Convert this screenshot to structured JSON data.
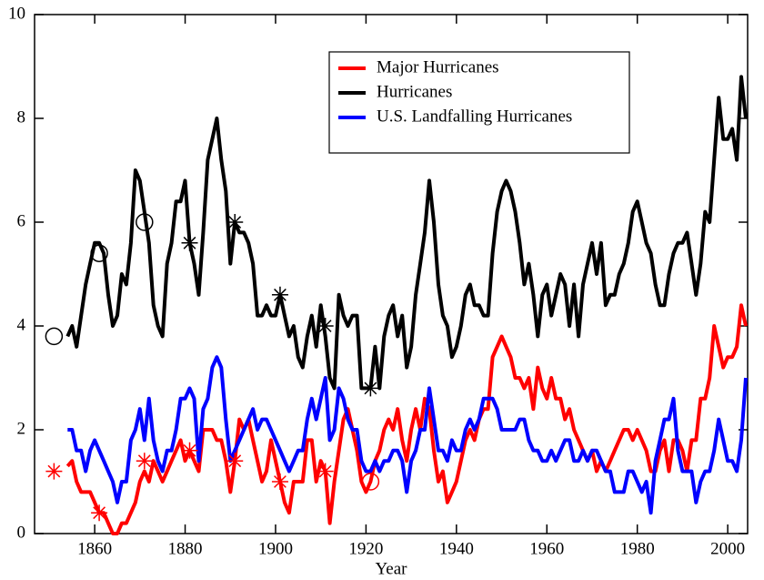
{
  "chart_data": {
    "type": "line",
    "xlabel": "Year",
    "xlim": [
      1846.7,
      2004.4
    ],
    "xticks": [
      1860,
      1880,
      1900,
      1920,
      1940,
      1960,
      1980,
      2000
    ],
    "ylim": [
      0,
      10
    ],
    "yticks": [
      0,
      2,
      4,
      6,
      8,
      10
    ],
    "grid": false,
    "legend": "upper-center",
    "x": [
      1854,
      1855,
      1856,
      1857,
      1858,
      1859,
      1860,
      1861,
      1862,
      1863,
      1864,
      1865,
      1866,
      1867,
      1868,
      1869,
      1870,
      1871,
      1872,
      1873,
      1874,
      1875,
      1876,
      1877,
      1878,
      1879,
      1880,
      1881,
      1882,
      1883,
      1884,
      1885,
      1886,
      1887,
      1888,
      1889,
      1890,
      1891,
      1892,
      1893,
      1894,
      1895,
      1896,
      1897,
      1898,
      1899,
      1900,
      1901,
      1902,
      1903,
      1904,
      1905,
      1906,
      1907,
      1908,
      1909,
      1910,
      1911,
      1912,
      1913,
      1914,
      1915,
      1916,
      1917,
      1918,
      1919,
      1920,
      1921,
      1922,
      1923,
      1924,
      1925,
      1926,
      1927,
      1928,
      1929,
      1930,
      1931,
      1932,
      1933,
      1934,
      1935,
      1936,
      1937,
      1938,
      1939,
      1940,
      1941,
      1942,
      1943,
      1944,
      1945,
      1946,
      1947,
      1948,
      1949,
      1950,
      1951,
      1952,
      1953,
      1954,
      1955,
      1956,
      1957,
      1958,
      1959,
      1960,
      1961,
      1962,
      1963,
      1964,
      1965,
      1966,
      1967,
      1968,
      1969,
      1970,
      1971,
      1972,
      1973,
      1974,
      1975,
      1976,
      1977,
      1978,
      1979,
      1980,
      1981,
      1982,
      1983,
      1984,
      1985,
      1986,
      1987,
      1988,
      1989,
      1990,
      1991,
      1992,
      1993,
      1994,
      1995,
      1996,
      1997,
      1998,
      1999,
      2000,
      2001,
      2002,
      2003,
      2004
    ],
    "series": [
      {
        "name": "Major Hurricanes",
        "color": "#ff0000",
        "values": [
          1.3,
          1.4,
          1.0,
          0.8,
          0.8,
          0.8,
          0.6,
          0.4,
          0.4,
          0.2,
          0.0,
          0.0,
          0.2,
          0.2,
          0.4,
          0.6,
          1.0,
          1.2,
          1.0,
          1.4,
          1.2,
          1.0,
          1.2,
          1.4,
          1.6,
          1.8,
          1.4,
          1.6,
          1.4,
          1.2,
          2.0,
          2.0,
          2.0,
          1.8,
          1.8,
          1.4,
          0.8,
          1.4,
          2.2,
          2.0,
          2.2,
          1.8,
          1.4,
          1.0,
          1.2,
          1.8,
          1.4,
          1.0,
          0.6,
          0.4,
          1.0,
          1.0,
          1.0,
          1.8,
          1.8,
          1.0,
          1.4,
          1.2,
          0.2,
          1.0,
          1.6,
          2.2,
          2.4,
          2.0,
          1.6,
          1.0,
          0.8,
          1.0,
          1.4,
          1.6,
          2.0,
          2.2,
          2.0,
          2.4,
          1.8,
          1.4,
          2.0,
          2.4,
          2.0,
          2.6,
          2.4,
          1.6,
          1.0,
          1.2,
          0.6,
          0.8,
          1.0,
          1.4,
          1.8,
          2.0,
          1.8,
          2.2,
          2.4,
          2.4,
          3.4,
          3.6,
          3.8,
          3.6,
          3.4,
          3.0,
          3.0,
          2.8,
          3.0,
          2.4,
          3.2,
          2.8,
          2.6,
          3.0,
          2.6,
          2.6,
          2.2,
          2.4,
          2.0,
          1.8,
          1.6,
          1.4,
          1.6,
          1.2,
          1.4,
          1.2,
          1.4,
          1.6,
          1.8,
          2.0,
          2.0,
          1.8,
          2.0,
          1.8,
          1.6,
          1.2,
          1.2,
          1.6,
          1.8,
          1.2,
          1.8,
          1.8,
          1.6,
          1.2,
          1.8,
          1.8,
          2.6,
          2.6,
          3.0,
          4.0,
          3.6,
          3.2,
          3.4,
          3.4,
          3.6,
          4.4,
          4.0
        ]
      },
      {
        "name": "Hurricanes",
        "color": "#000000",
        "values": [
          3.8,
          4.0,
          3.6,
          4.2,
          4.8,
          5.2,
          5.6,
          5.6,
          5.4,
          4.6,
          4.0,
          4.2,
          5.0,
          4.8,
          5.6,
          7.0,
          6.8,
          6.2,
          5.6,
          4.4,
          4.0,
          3.8,
          5.2,
          5.6,
          6.4,
          6.4,
          6.8,
          5.6,
          5.2,
          4.6,
          5.8,
          7.2,
          7.6,
          8.0,
          7.2,
          6.6,
          5.2,
          6.0,
          5.8,
          5.8,
          5.6,
          5.2,
          4.2,
          4.2,
          4.4,
          4.2,
          4.2,
          4.6,
          4.2,
          3.8,
          4.0,
          3.4,
          3.2,
          3.8,
          4.2,
          3.6,
          4.4,
          3.8,
          3.0,
          2.8,
          4.6,
          4.2,
          4.0,
          4.2,
          4.2,
          2.8,
          2.8,
          2.8,
          3.6,
          2.8,
          3.8,
          4.2,
          4.4,
          3.8,
          4.2,
          3.2,
          3.6,
          4.6,
          5.2,
          5.8,
          6.8,
          6.0,
          4.8,
          4.2,
          4.0,
          3.4,
          3.6,
          4.0,
          4.6,
          4.8,
          4.4,
          4.4,
          4.2,
          4.2,
          5.4,
          6.2,
          6.6,
          6.8,
          6.6,
          6.2,
          5.6,
          4.8,
          5.2,
          4.6,
          3.8,
          4.6,
          4.8,
          4.2,
          4.6,
          5.0,
          4.8,
          4.0,
          4.8,
          3.8,
          4.8,
          5.2,
          5.6,
          5.0,
          5.6,
          4.4,
          4.6,
          4.6,
          5.0,
          5.2,
          5.6,
          6.2,
          6.4,
          6.0,
          5.6,
          5.4,
          4.8,
          4.4,
          4.4,
          5.0,
          5.4,
          5.6,
          5.6,
          5.8,
          5.2,
          4.6,
          5.2,
          6.2,
          6.0,
          7.2,
          8.4,
          7.6,
          7.6,
          7.8,
          7.2,
          8.8,
          8.0
        ]
      },
      {
        "name": "U.S. Landfalling Hurricanes",
        "color": "#0000ff",
        "values": [
          2.0,
          2.0,
          1.6,
          1.6,
          1.2,
          1.6,
          1.8,
          1.6,
          1.4,
          1.2,
          1.0,
          0.6,
          1.0,
          1.0,
          1.8,
          2.0,
          2.4,
          1.8,
          2.6,
          1.8,
          1.4,
          1.2,
          1.6,
          1.6,
          2.0,
          2.6,
          2.6,
          2.8,
          2.6,
          1.4,
          2.4,
          2.6,
          3.2,
          3.4,
          3.2,
          2.2,
          1.4,
          1.6,
          1.8,
          2.0,
          2.2,
          2.4,
          2.0,
          2.2,
          2.2,
          2.0,
          1.8,
          1.6,
          1.4,
          1.2,
          1.4,
          1.6,
          1.6,
          2.2,
          2.6,
          2.2,
          2.6,
          3.0,
          1.8,
          2.0,
          2.8,
          2.6,
          2.2,
          2.0,
          2.0,
          1.4,
          1.2,
          1.2,
          1.4,
          1.2,
          1.4,
          1.4,
          1.6,
          1.6,
          1.4,
          0.8,
          1.4,
          1.6,
          2.0,
          2.0,
          2.8,
          2.2,
          1.6,
          1.6,
          1.4,
          1.8,
          1.6,
          1.6,
          2.0,
          2.2,
          2.0,
          2.2,
          2.6,
          2.6,
          2.6,
          2.4,
          2.0,
          2.0,
          2.0,
          2.0,
          2.2,
          2.2,
          1.8,
          1.6,
          1.6,
          1.4,
          1.4,
          1.6,
          1.4,
          1.6,
          1.8,
          1.8,
          1.4,
          1.4,
          1.6,
          1.4,
          1.6,
          1.6,
          1.4,
          1.2,
          1.2,
          0.8,
          0.8,
          0.8,
          1.2,
          1.2,
          1.0,
          0.8,
          1.0,
          0.4,
          1.4,
          1.8,
          2.2,
          2.2,
          2.6,
          1.6,
          1.2,
          1.2,
          1.2,
          0.6,
          1.0,
          1.2,
          1.2,
          1.6,
          2.2,
          1.8,
          1.4,
          1.4,
          1.2,
          1.8,
          3.0
        ]
      }
    ],
    "markers": [
      {
        "color": "#000000",
        "symbol": "circle",
        "x": [
          1851,
          1861,
          1871
        ],
        "values": [
          3.8,
          5.4,
          6.0
        ]
      },
      {
        "color": "#000000",
        "symbol": "asterisk",
        "x": [
          1881,
          1891,
          1901,
          1911,
          1921
        ],
        "values": [
          5.6,
          6.0,
          4.6,
          4.0,
          2.8
        ]
      },
      {
        "color": "#ff0000",
        "symbol": "asterisk",
        "x": [
          1851,
          1861,
          1871,
          1881,
          1891,
          1901,
          1911
        ],
        "values": [
          1.2,
          0.4,
          1.4,
          1.6,
          1.4,
          1.0,
          1.2
        ]
      },
      {
        "color": "#ff0000",
        "symbol": "circle",
        "x": [
          1921
        ],
        "values": [
          1.0
        ]
      }
    ]
  }
}
